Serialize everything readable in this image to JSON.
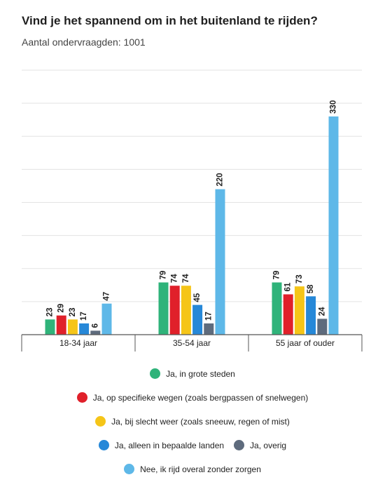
{
  "title": "Vind je het spannend om in het buitenland te rijden?",
  "subtitle": "Aantal ondervraagden: 1001",
  "chart_data": {
    "type": "bar",
    "title": "Vind je het spannend om in het buitenland te rijden?",
    "subtitle": "Aantal ondervraagden: 1001",
    "categories": [
      "18-34 jaar",
      "35-54 jaar",
      "55 jaar of ouder"
    ],
    "series": [
      {
        "name": "Ja, in grote steden",
        "color": "#2fb37a",
        "values": [
          23,
          79,
          79
        ]
      },
      {
        "name": "Ja, op specifieke wegen (zoals bergpassen of snelwegen)",
        "color": "#e0202a",
        "values": [
          29,
          74,
          61
        ]
      },
      {
        "name": "Ja, bij slecht weer (zoals sneeuw, regen of mist)",
        "color": "#f5c518",
        "values": [
          23,
          74,
          73
        ]
      },
      {
        "name": "Ja, alleen in bepaalde landen",
        "color": "#2688d8",
        "values": [
          17,
          45,
          58
        ]
      },
      {
        "name": "Ja, overig",
        "color": "#5e6b7d",
        "values": [
          6,
          17,
          24
        ]
      },
      {
        "name": "Nee, ik rijd overal zonder zorgen",
        "color": "#5eb8e8",
        "values": [
          47,
          220,
          330
        ]
      }
    ],
    "ylim": [
      0,
      400
    ],
    "grid": true,
    "data_labels": true,
    "legend_position": "bottom"
  }
}
